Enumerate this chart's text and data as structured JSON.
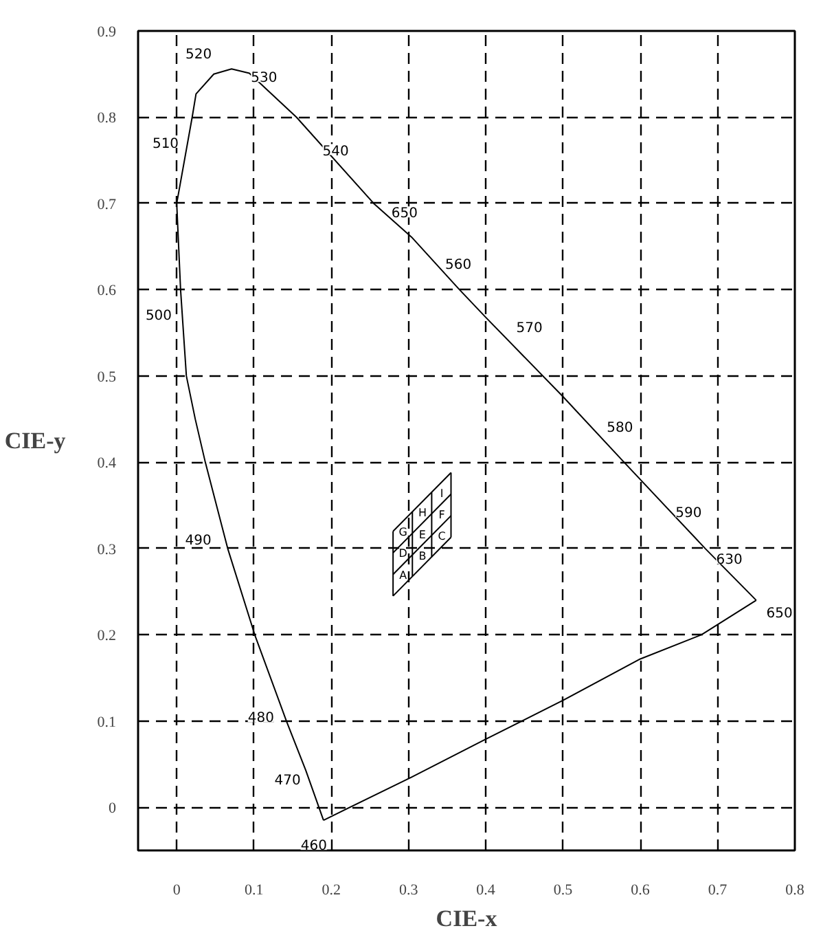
{
  "chart_data": {
    "type": "line",
    "xlabel": "CIE-x",
    "ylabel": "CIE-y",
    "xlim": [
      -0.05,
      0.8
    ],
    "ylim": [
      -0.05,
      0.9
    ],
    "xticks": [
      0,
      0.1,
      0.2,
      0.3,
      0.4,
      0.5,
      0.6,
      0.7,
      0.8
    ],
    "yticks": [
      0,
      0.1,
      0.2,
      0.3,
      0.4,
      0.5,
      0.6,
      0.7,
      0.8,
      0.9
    ],
    "grid": true,
    "series": [
      {
        "color": "#000000",
        "x": [
          0.19,
          0.167,
          0.142,
          0.101,
          0.066,
          0.037,
          0.024,
          0.0125,
          0.005,
          0.0,
          0.02,
          0.025,
          0.048,
          0.071,
          0.094,
          0.155,
          0.255,
          0.304,
          0.366,
          0.4,
          0.5,
          0.579,
          0.684,
          0.75
        ],
        "values": [
          -0.015,
          0.043,
          0.1,
          0.2,
          0.3,
          0.4,
          0.45,
          0.5,
          0.6,
          0.7,
          0.8,
          0.827,
          0.85,
          0.856,
          0.851,
          0.8,
          0.7,
          0.661,
          0.6,
          0.568,
          0.476,
          0.4,
          0.3,
          0.24
        ]
      },
      {
        "color": "#000000",
        "x": [
          0.19,
          0.304,
          0.4,
          0.5,
          0.6,
          0.679,
          0.75
        ],
        "values": [
          -0.015,
          0.035,
          0.079,
          0.124,
          0.172,
          0.2,
          0.24
        ]
      },
      {
        "color": "#000000",
        "x": [
          0.28,
          0.28
        ],
        "values": [
          0.245,
          0.32
        ]
      },
      {
        "color": "#000000",
        "x": [
          0.305,
          0.305
        ],
        "values": [
          0.268,
          0.343
        ]
      },
      {
        "color": "#000000",
        "x": [
          0.33,
          0.33
        ],
        "values": [
          0.29,
          0.365
        ]
      },
      {
        "color": "#000000",
        "x": [
          0.355,
          0.355
        ],
        "values": [
          0.313,
          0.388
        ]
      },
      {
        "color": "#000000",
        "x": [
          0.28,
          0.355
        ],
        "values": [
          0.245,
          0.313
        ]
      },
      {
        "color": "#000000",
        "x": [
          0.28,
          0.355
        ],
        "values": [
          0.27,
          0.338
        ]
      },
      {
        "color": "#000000",
        "x": [
          0.28,
          0.355
        ],
        "values": [
          0.295,
          0.363
        ]
      },
      {
        "color": "#000000",
        "x": [
          0.28,
          0.355
        ],
        "values": [
          0.32,
          0.388
        ]
      }
    ],
    "annotations": [
      {
        "text": "520",
        "x": 0.048,
        "y": 0.85
      },
      {
        "text": "530",
        "x": 0.13,
        "y": 0.821
      },
      {
        "text": "540",
        "x": 0.22,
        "y": 0.735
      },
      {
        "text": "650",
        "x": 0.304,
        "y": 0.661
      },
      {
        "text": "560",
        "x": 0.366,
        "y": 0.6
      },
      {
        "text": "570",
        "x": 0.44,
        "y": 0.531
      },
      {
        "text": "580",
        "x": 0.54,
        "y": 0.438
      },
      {
        "text": "590",
        "x": 0.63,
        "y": 0.351
      },
      {
        "text": "630",
        "x": 0.684,
        "y": 0.3
      },
      {
        "text": "650",
        "x": 0.75,
        "y": 0.24
      },
      {
        "text": "510",
        "x": 0.01,
        "y": 0.75
      },
      {
        "text": "500",
        "x": 0.008,
        "y": 0.56
      },
      {
        "text": "490",
        "x": 0.06,
        "y": 0.321
      },
      {
        "text": "480",
        "x": 0.13,
        "y": 0.129
      },
      {
        "text": "470",
        "x": 0.16,
        "y": 0.059
      },
      {
        "text": "460",
        "x": 0.19,
        "y": -0.015
      },
      {
        "text": "A",
        "x": 0.293,
        "y": 0.269
      },
      {
        "text": "B",
        "x": 0.318,
        "y": 0.291
      },
      {
        "text": "C",
        "x": 0.343,
        "y": 0.314
      },
      {
        "text": "D",
        "x": 0.293,
        "y": 0.294
      },
      {
        "text": "E",
        "x": 0.318,
        "y": 0.316
      },
      {
        "text": "F",
        "x": 0.343,
        "y": 0.339
      },
      {
        "text": "G",
        "x": 0.293,
        "y": 0.319
      },
      {
        "text": "H",
        "x": 0.318,
        "y": 0.341
      },
      {
        "text": "I",
        "x": 0.343,
        "y": 0.364
      }
    ]
  }
}
